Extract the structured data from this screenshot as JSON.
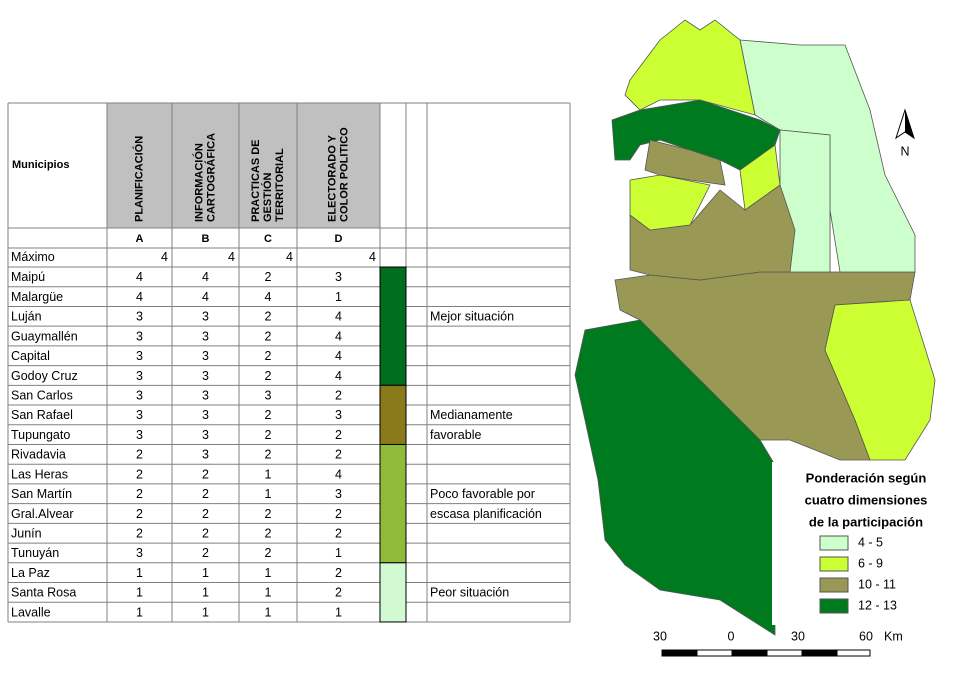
{
  "table": {
    "header": {
      "label": "Municipios",
      "columns": [
        {
          "lines": [
            "PLANIFICACIÓN"
          ],
          "letter": "A"
        },
        {
          "lines": [
            "INFORMACIÓN",
            "CARTOGRÁFICA"
          ],
          "letter": "B"
        },
        {
          "lines": [
            "PRACTICAS DE",
            "GESTIÓN",
            "TERRITORIAL"
          ],
          "letter": "C"
        },
        {
          "lines": [
            "ELECTORADO Y",
            "COLOR POLITICO"
          ],
          "letter": "D"
        }
      ]
    },
    "max_row": {
      "label": "Máximo",
      "values": [
        4,
        4,
        4,
        4
      ]
    },
    "groups": [
      {
        "color": "#006e1e",
        "notes": [
          "Mejor situación"
        ],
        "rows": [
          {
            "name": "Maipú",
            "values": [
              4,
              4,
              2,
              3
            ]
          },
          {
            "name": "Malargüe",
            "values": [
              4,
              4,
              4,
              1
            ]
          },
          {
            "name": "Luján",
            "values": [
              3,
              3,
              2,
              4
            ]
          },
          {
            "name": "Guaymallén",
            "values": [
              3,
              3,
              2,
              4
            ]
          },
          {
            "name": "Capital",
            "values": [
              3,
              3,
              2,
              4
            ]
          },
          {
            "name": "Godoy Cruz",
            "values": [
              3,
              3,
              2,
              4
            ]
          }
        ]
      },
      {
        "color": "#8a7a1c",
        "notes": [
          "Medianamente",
          "favorable"
        ],
        "rows": [
          {
            "name": "San Carlos",
            "values": [
              3,
              3,
              3,
              2
            ]
          },
          {
            "name": "San Rafael",
            "values": [
              3,
              3,
              2,
              3
            ]
          },
          {
            "name": "Tupungato",
            "values": [
              3,
              3,
              2,
              2
            ]
          }
        ]
      },
      {
        "color": "#8fba3a",
        "notes": [
          "Poco favorable por",
          "escasa planificación"
        ],
        "rows": [
          {
            "name": "Rivadavia",
            "values": [
              2,
              3,
              2,
              2
            ]
          },
          {
            "name": "Las Heras",
            "values": [
              2,
              2,
              1,
              4
            ]
          },
          {
            "name": "San Martín",
            "values": [
              2,
              2,
              1,
              3
            ]
          },
          {
            "name": "Gral.Alvear",
            "values": [
              2,
              2,
              2,
              2
            ]
          },
          {
            "name": "Junín",
            "values": [
              2,
              2,
              2,
              2
            ]
          },
          {
            "name": "Tunuyán",
            "values": [
              3,
              2,
              2,
              1
            ]
          }
        ]
      },
      {
        "color": "#d2fad2",
        "notes": [
          "Peor situación"
        ],
        "rows": [
          {
            "name": "La Paz",
            "values": [
              1,
              1,
              1,
              2
            ]
          },
          {
            "name": "Santa Rosa",
            "values": [
              1,
              1,
              1,
              2
            ]
          },
          {
            "name": "Lavalle",
            "values": [
              1,
              1,
              1,
              1
            ]
          }
        ]
      }
    ]
  },
  "map": {
    "legend": {
      "title": [
        "Ponderación según",
        "cuatro dimensiones",
        "de la participación"
      ],
      "items": [
        {
          "label": "4 - 5",
          "color": "#ccffcc"
        },
        {
          "label": "6 - 9",
          "color": "#ccff33"
        },
        {
          "label": "10 - 11",
          "color": "#999955"
        },
        {
          "label": "12 - 13",
          "color": "#007a1e"
        }
      ]
    },
    "scale": {
      "labels": [
        "30",
        "0",
        "30",
        "60"
      ],
      "unit": "Km"
    },
    "north": "N"
  }
}
